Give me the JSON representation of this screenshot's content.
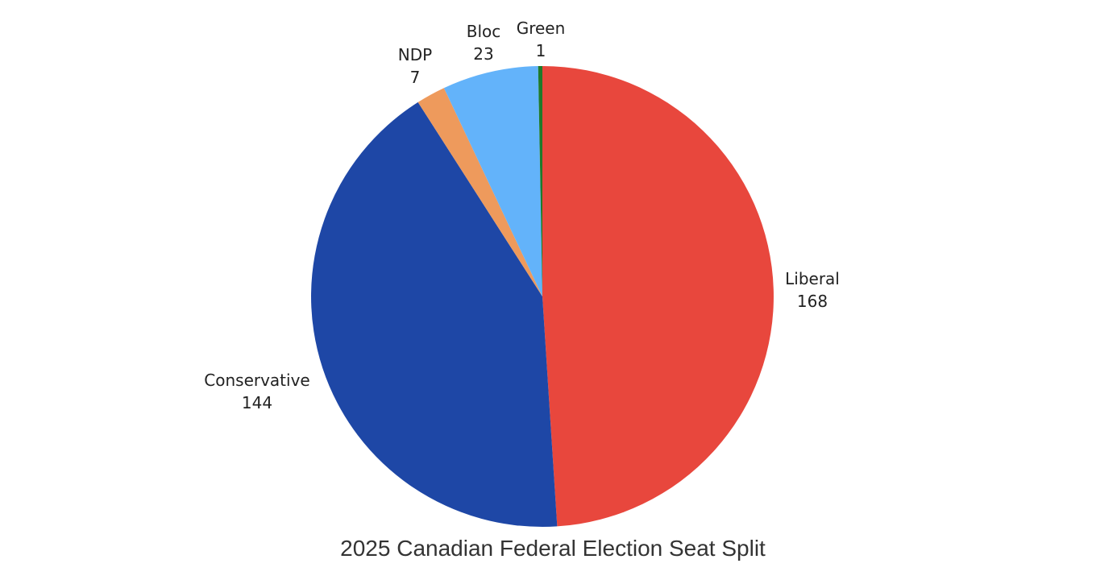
{
  "chart_data": {
    "type": "pie",
    "title": "2025 Canadian Federal Election Seat Split",
    "slices": [
      {
        "label": "Liberal",
        "value": 168,
        "color": "#E8473D"
      },
      {
        "label": "Conservative",
        "value": 144,
        "color": "#1E47A6"
      },
      {
        "label": "NDP",
        "value": 7,
        "color": "#EE9A5C"
      },
      {
        "label": "Bloc",
        "value": 23,
        "color": "#63B3FA"
      },
      {
        "label": "Green",
        "value": 1,
        "color": "#1F7A2A"
      }
    ],
    "start_angle": "12 o'clock",
    "direction": "clockwise",
    "legend": "none"
  }
}
